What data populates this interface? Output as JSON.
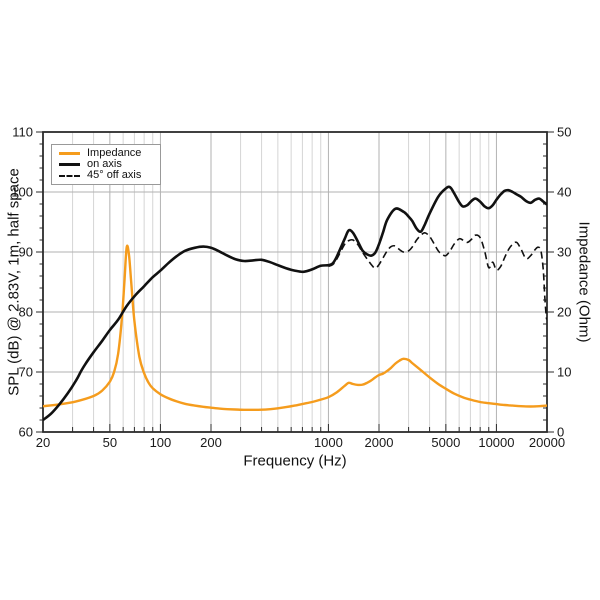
{
  "figure": {
    "background": "#ffffff"
  },
  "axes": {
    "x_title": "Frequency (Hz)",
    "y_left_title": "SPL (dB) @ 2.83V, 1m, half space",
    "y_right_title": "Impedance (Ohm)"
  },
  "legend": {
    "items": [
      {
        "label": "Impedance",
        "swatch": "orange-solid"
      },
      {
        "label": "on axis",
        "swatch": "black-solid"
      },
      {
        "label": "45° off axis",
        "swatch": "black-dashed"
      }
    ]
  },
  "colors": {
    "impedance": "#F59C1D",
    "trace": "#111111",
    "grid_minor": "#d5d5d5",
    "grid_major": "#b2b2b2",
    "spine": "#2b2b2b",
    "text": "#1a1a1a",
    "legend_border": "#999999"
  },
  "chart_data": {
    "type": "line",
    "title": "",
    "xlabel": "Frequency (Hz)",
    "ylabel_left": "SPL (dB) @ 2.83V, 1m, half space",
    "ylabel_right": "Impedance (Ohm)",
    "x_scale": "log",
    "x_range": [
      20,
      20000
    ],
    "y_left": {
      "range": [
        60,
        110
      ],
      "major_ticks": [
        60,
        70,
        80,
        90,
        100,
        110
      ],
      "minor_step": 2
    },
    "y_right": {
      "range": [
        0,
        50
      ],
      "major_ticks": [
        0,
        10,
        20,
        30,
        40,
        50
      ],
      "minor_step": 2
    },
    "x_major_ticks": [
      {
        "value": 20,
        "label": "20"
      },
      {
        "value": 50,
        "label": "50"
      },
      {
        "value": 100,
        "label": "100"
      },
      {
        "value": 200,
        "label": "200"
      },
      {
        "value": 1000,
        "label": "1000"
      },
      {
        "value": 2000,
        "label": "2000"
      },
      {
        "value": 5000,
        "label": "5000"
      },
      {
        "value": 10000,
        "label": "10000"
      },
      {
        "value": 20000,
        "label": "20000"
      }
    ],
    "x_minor_ticks": [
      30,
      40,
      60,
      70,
      80,
      90,
      300,
      400,
      500,
      600,
      700,
      800,
      900,
      3000,
      4000,
      6000,
      7000,
      8000,
      9000
    ],
    "grid": {
      "horizontal_at": [
        70,
        80,
        90,
        100
      ],
      "vertical": "all_ticks"
    },
    "legend_position": "top-left",
    "series": [
      {
        "name": "Impedance",
        "axis": "right",
        "unit": "Ohm",
        "color": "#F59C1D",
        "style": "solid",
        "width": 2.4,
        "points": [
          [
            20,
            4.3
          ],
          [
            25,
            4.6
          ],
          [
            31.5,
            5.1
          ],
          [
            40,
            6.0
          ],
          [
            45,
            6.9
          ],
          [
            50,
            8.4
          ],
          [
            53,
            10.0
          ],
          [
            56,
            13.0
          ],
          [
            59,
            19.0
          ],
          [
            61,
            25.0
          ],
          [
            63,
            30.8
          ],
          [
            65,
            29.5
          ],
          [
            67,
            25.0
          ],
          [
            70,
            18.5
          ],
          [
            75,
            12.5
          ],
          [
            80,
            9.8
          ],
          [
            85,
            8.2
          ],
          [
            90,
            7.3
          ],
          [
            100,
            6.3
          ],
          [
            112,
            5.6
          ],
          [
            125,
            5.1
          ],
          [
            140,
            4.7
          ],
          [
            160,
            4.4
          ],
          [
            180,
            4.2
          ],
          [
            200,
            4.05
          ],
          [
            224,
            3.9
          ],
          [
            250,
            3.8
          ],
          [
            280,
            3.75
          ],
          [
            315,
            3.7
          ],
          [
            355,
            3.7
          ],
          [
            400,
            3.72
          ],
          [
            450,
            3.8
          ],
          [
            500,
            3.95
          ],
          [
            560,
            4.15
          ],
          [
            630,
            4.4
          ],
          [
            710,
            4.7
          ],
          [
            800,
            5.0
          ],
          [
            900,
            5.4
          ],
          [
            1000,
            5.8
          ],
          [
            1120,
            6.6
          ],
          [
            1250,
            7.7
          ],
          [
            1320,
            8.2
          ],
          [
            1400,
            8.0
          ],
          [
            1500,
            7.85
          ],
          [
            1600,
            7.9
          ],
          [
            1700,
            8.2
          ],
          [
            1800,
            8.6
          ],
          [
            1900,
            9.1
          ],
          [
            2000,
            9.5
          ],
          [
            2120,
            9.75
          ],
          [
            2240,
            10.2
          ],
          [
            2360,
            10.7
          ],
          [
            2500,
            11.4
          ],
          [
            2650,
            11.9
          ],
          [
            2800,
            12.2
          ],
          [
            3000,
            12.0
          ],
          [
            3150,
            11.5
          ],
          [
            3550,
            10.3
          ],
          [
            4000,
            9.1
          ],
          [
            4500,
            8.0
          ],
          [
            5000,
            7.2
          ],
          [
            5600,
            6.4
          ],
          [
            6300,
            5.8
          ],
          [
            7100,
            5.35
          ],
          [
            8000,
            5.0
          ],
          [
            9000,
            4.8
          ],
          [
            10000,
            4.65
          ],
          [
            11200,
            4.5
          ],
          [
            12500,
            4.4
          ],
          [
            14000,
            4.3
          ],
          [
            16000,
            4.25
          ],
          [
            18000,
            4.3
          ],
          [
            20000,
            4.4
          ]
        ]
      },
      {
        "name": "on axis",
        "axis": "left",
        "unit": "dB",
        "color": "#111111",
        "style": "solid",
        "width": 2.6,
        "points": [
          [
            20,
            62.0
          ],
          [
            22.4,
            63.1
          ],
          [
            25,
            64.6
          ],
          [
            28,
            66.4
          ],
          [
            31.5,
            68.6
          ],
          [
            33.5,
            70.0
          ],
          [
            35.5,
            71.2
          ],
          [
            40,
            73.3
          ],
          [
            45,
            75.2
          ],
          [
            50,
            77.0
          ],
          [
            56,
            78.7
          ],
          [
            63,
            81.0
          ],
          [
            71,
            82.8
          ],
          [
            80,
            84.3
          ],
          [
            90,
            85.8
          ],
          [
            100,
            86.9
          ],
          [
            112,
            88.2
          ],
          [
            125,
            89.3
          ],
          [
            140,
            90.2
          ],
          [
            160,
            90.7
          ],
          [
            180,
            90.9
          ],
          [
            200,
            90.7
          ],
          [
            224,
            90.1
          ],
          [
            250,
            89.4
          ],
          [
            280,
            88.8
          ],
          [
            315,
            88.5
          ],
          [
            355,
            88.6
          ],
          [
            400,
            88.7
          ],
          [
            450,
            88.3
          ],
          [
            500,
            87.8
          ],
          [
            560,
            87.3
          ],
          [
            630,
            86.9
          ],
          [
            710,
            86.7
          ],
          [
            800,
            87.1
          ],
          [
            900,
            87.7
          ],
          [
            1000,
            87.8
          ],
          [
            1060,
            88.1
          ],
          [
            1120,
            89.2
          ],
          [
            1250,
            92.2
          ],
          [
            1320,
            93.6
          ],
          [
            1400,
            93.2
          ],
          [
            1500,
            91.7
          ],
          [
            1600,
            90.2
          ],
          [
            1700,
            89.6
          ],
          [
            1800,
            89.4
          ],
          [
            1900,
            89.9
          ],
          [
            2000,
            91.3
          ],
          [
            2120,
            93.4
          ],
          [
            2240,
            95.4
          ],
          [
            2500,
            97.2
          ],
          [
            2800,
            96.7
          ],
          [
            3000,
            95.9
          ],
          [
            3150,
            95.2
          ],
          [
            3350,
            93.9
          ],
          [
            3550,
            93.4
          ],
          [
            3750,
            94.6
          ],
          [
            4000,
            96.4
          ],
          [
            4500,
            99.2
          ],
          [
            5000,
            100.6
          ],
          [
            5300,
            100.8
          ],
          [
            5600,
            99.8
          ],
          [
            6000,
            98.3
          ],
          [
            6300,
            97.6
          ],
          [
            6700,
            97.8
          ],
          [
            7100,
            98.5
          ],
          [
            7500,
            98.9
          ],
          [
            8000,
            98.4
          ],
          [
            8500,
            97.6
          ],
          [
            9000,
            97.3
          ],
          [
            9500,
            97.8
          ],
          [
            10000,
            98.7
          ],
          [
            10600,
            99.6
          ],
          [
            11200,
            100.2
          ],
          [
            11800,
            100.3
          ],
          [
            12500,
            100.0
          ],
          [
            13200,
            99.6
          ],
          [
            14000,
            99.2
          ],
          [
            15000,
            98.5
          ],
          [
            16000,
            98.2
          ],
          [
            17000,
            98.7
          ],
          [
            18000,
            98.9
          ],
          [
            19000,
            98.4
          ],
          [
            20000,
            97.9
          ]
        ]
      },
      {
        "name": "45° off axis",
        "axis": "left",
        "unit": "dB",
        "color": "#111111",
        "style": "dashed",
        "dash": "7 4",
        "width": 1.6,
        "points": [
          [
            1000,
            87.6
          ],
          [
            1060,
            87.9
          ],
          [
            1120,
            88.8
          ],
          [
            1250,
            91.3
          ],
          [
            1320,
            91.9
          ],
          [
            1400,
            92.0
          ],
          [
            1500,
            91.2
          ],
          [
            1600,
            89.9
          ],
          [
            1800,
            87.9
          ],
          [
            1900,
            87.3
          ],
          [
            2000,
            87.9
          ],
          [
            2120,
            89.1
          ],
          [
            2240,
            90.2
          ],
          [
            2360,
            90.9
          ],
          [
            2500,
            91.0
          ],
          [
            2650,
            90.4
          ],
          [
            2800,
            90.0
          ],
          [
            3000,
            90.2
          ],
          [
            3150,
            90.8
          ],
          [
            3350,
            92.0
          ],
          [
            3550,
            92.8
          ],
          [
            3750,
            93.2
          ],
          [
            4000,
            92.6
          ],
          [
            4250,
            91.4
          ],
          [
            4500,
            90.2
          ],
          [
            4750,
            89.6
          ],
          [
            5000,
            89.4
          ],
          [
            5300,
            90.2
          ],
          [
            5600,
            91.3
          ],
          [
            6000,
            92.2
          ],
          [
            6300,
            92.0
          ],
          [
            6700,
            91.6
          ],
          [
            7100,
            92.1
          ],
          [
            7500,
            92.8
          ],
          [
            8000,
            92.4
          ],
          [
            8500,
            90.2
          ],
          [
            9000,
            87.4
          ],
          [
            9500,
            88.3
          ],
          [
            10000,
            87.0
          ],
          [
            10600,
            87.6
          ],
          [
            11200,
            89.1
          ],
          [
            11800,
            90.4
          ],
          [
            12500,
            91.3
          ],
          [
            13200,
            91.6
          ],
          [
            14000,
            90.5
          ],
          [
            15000,
            88.9
          ],
          [
            16000,
            89.4
          ],
          [
            17000,
            90.4
          ],
          [
            17700,
            90.8
          ],
          [
            18400,
            90.2
          ],
          [
            19000,
            87.0
          ],
          [
            19400,
            82.5
          ],
          [
            19800,
            79.2
          ],
          [
            20000,
            78.8
          ]
        ]
      }
    ]
  }
}
